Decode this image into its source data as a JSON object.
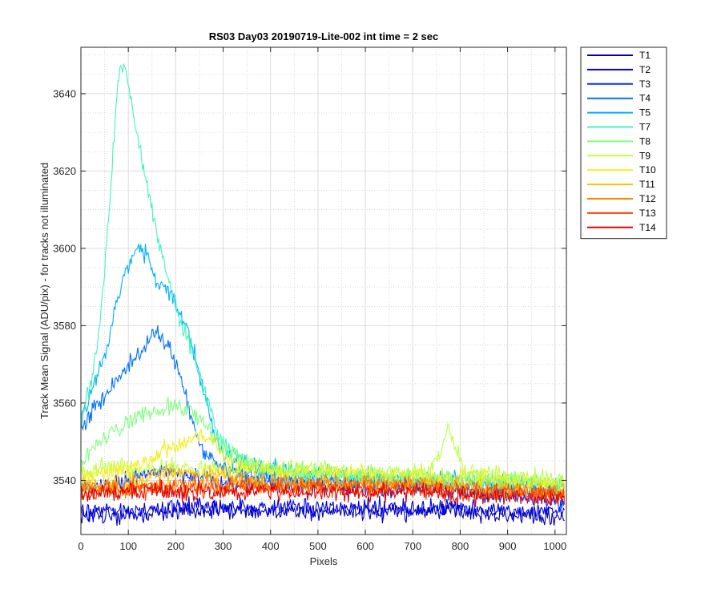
{
  "chart_data": {
    "type": "line",
    "title": "RS03 Day03 20190719-Lite-002 int time = 2 sec",
    "xlabel": "Pixels",
    "ylabel": "Track Mean Signal (ADU/pix) - for tracks not illuminated",
    "xlim": [
      0,
      1024
    ],
    "ylim": [
      3526,
      3652
    ],
    "xticks": [
      0,
      100,
      200,
      300,
      400,
      500,
      600,
      700,
      800,
      900,
      1000
    ],
    "yticks": [
      3540,
      3560,
      3580,
      3600,
      3620,
      3640
    ],
    "grid": true,
    "minor_grid": true,
    "legend_position": "outside-right-top",
    "series": [
      {
        "name": "T1",
        "color": "#0000B3",
        "x": [
          0,
          100,
          200,
          300,
          400,
          500,
          600,
          700,
          800,
          900,
          1020
        ],
        "y": [
          3531,
          3531,
          3532,
          3532,
          3532,
          3532,
          3532,
          3532,
          3532,
          3531,
          3530
        ]
      },
      {
        "name": "T2",
        "color": "#0000E6",
        "x": [
          0,
          100,
          200,
          300,
          400,
          500,
          600,
          700,
          800,
          900,
          1020
        ],
        "y": [
          3532,
          3532,
          3533,
          3533,
          3533,
          3533,
          3533,
          3533,
          3533,
          3532,
          3532
        ]
      },
      {
        "name": "T3",
        "color": "#0030FF",
        "x": [
          0,
          50,
          100,
          150,
          200,
          250,
          300,
          400,
          500,
          600,
          700,
          800,
          900,
          1020
        ],
        "y": [
          3538,
          3539,
          3540,
          3542,
          3542,
          3541,
          3539,
          3539,
          3539,
          3538,
          3538,
          3537,
          3536,
          3534
        ]
      },
      {
        "name": "T4",
        "color": "#0070FF",
        "x": [
          0,
          20,
          50,
          100,
          140,
          160,
          180,
          200,
          220,
          240,
          260,
          300,
          350,
          400,
          500,
          600,
          700,
          800,
          900,
          1020
        ],
        "y": [
          3553,
          3558,
          3562,
          3570,
          3575,
          3578,
          3576,
          3570,
          3563,
          3553,
          3547,
          3543,
          3542,
          3541,
          3540,
          3540,
          3539,
          3539,
          3538,
          3537
        ]
      },
      {
        "name": "T5",
        "color": "#00B0FF",
        "x": [
          0,
          20,
          50,
          80,
          100,
          120,
          140,
          160,
          180,
          200,
          220,
          240,
          260,
          280,
          300,
          350,
          400,
          500,
          600,
          700,
          800,
          900,
          1020
        ],
        "y": [
          3555,
          3562,
          3572,
          3588,
          3596,
          3600,
          3598,
          3592,
          3589,
          3585,
          3580,
          3573,
          3562,
          3553,
          3547,
          3544,
          3543,
          3541,
          3541,
          3540,
          3540,
          3539,
          3538
        ]
      },
      {
        "name": "T7",
        "color": "#40F5C0",
        "x": [
          0,
          20,
          40,
          60,
          75,
          85,
          95,
          110,
          130,
          150,
          170,
          190,
          210,
          230,
          250,
          270,
          290,
          310,
          340,
          380,
          450,
          500,
          600,
          700,
          800,
          900,
          1020
        ],
        "y": [
          3557,
          3565,
          3580,
          3610,
          3638,
          3648,
          3647,
          3635,
          3622,
          3610,
          3598,
          3590,
          3581,
          3575,
          3568,
          3560,
          3552,
          3548,
          3545,
          3543,
          3542,
          3542,
          3541,
          3541,
          3540,
          3540,
          3539
        ]
      },
      {
        "name": "T8",
        "color": "#80FF80",
        "x": [
          0,
          30,
          50,
          100,
          150,
          200,
          230,
          260,
          280,
          300,
          350,
          400,
          500,
          600,
          700,
          800,
          900,
          1020
        ],
        "y": [
          3544,
          3549,
          3551,
          3555,
          3558,
          3559,
          3558,
          3555,
          3551,
          3548,
          3545,
          3543,
          3542,
          3541,
          3541,
          3540,
          3540,
          3539
        ]
      },
      {
        "name": "T9",
        "color": "#C0FF40",
        "x": [
          0,
          40,
          60,
          100,
          200,
          300,
          400,
          500,
          600,
          700,
          740,
          760,
          775,
          790,
          805,
          820,
          900,
          1020
        ],
        "y": [
          3542,
          3543,
          3544,
          3543,
          3543,
          3543,
          3543,
          3543,
          3542,
          3542,
          3543,
          3548,
          3554,
          3549,
          3543,
          3542,
          3541,
          3540
        ]
      },
      {
        "name": "T10",
        "color": "#F0F020",
        "x": [
          0,
          100,
          150,
          200,
          250,
          280,
          300,
          350,
          400,
          500,
          600,
          700,
          800,
          900,
          1020
        ],
        "y": [
          3541,
          3543,
          3546,
          3549,
          3551,
          3550,
          3546,
          3543,
          3542,
          3542,
          3542,
          3541,
          3541,
          3540,
          3539
        ]
      },
      {
        "name": "T11",
        "color": "#FFC000",
        "x": [
          0,
          100,
          150,
          200,
          250,
          300,
          350,
          400,
          500,
          600,
          700,
          800,
          900,
          1020
        ],
        "y": [
          3539,
          3539,
          3541,
          3542,
          3542,
          3541,
          3540,
          3539,
          3539,
          3539,
          3539,
          3539,
          3538,
          3537
        ]
      },
      {
        "name": "T12",
        "color": "#FF8000",
        "x": [
          0,
          100,
          200,
          300,
          400,
          500,
          600,
          700,
          800,
          900,
          1020
        ],
        "y": [
          3538,
          3538,
          3539,
          3539,
          3539,
          3539,
          3539,
          3539,
          3538,
          3537,
          3536
        ]
      },
      {
        "name": "T13",
        "color": "#FF4000",
        "x": [
          0,
          100,
          200,
          300,
          400,
          500,
          600,
          700,
          800,
          900,
          1020
        ],
        "y": [
          3537,
          3537,
          3538,
          3538,
          3538,
          3538,
          3538,
          3538,
          3537,
          3537,
          3536
        ]
      },
      {
        "name": "T14",
        "color": "#E00000",
        "x": [
          0,
          100,
          200,
          300,
          400,
          500,
          600,
          700,
          800,
          900,
          1020
        ],
        "y": [
          3536,
          3537,
          3537,
          3537,
          3537,
          3537,
          3537,
          3537,
          3536,
          3536,
          3535
        ]
      }
    ]
  }
}
